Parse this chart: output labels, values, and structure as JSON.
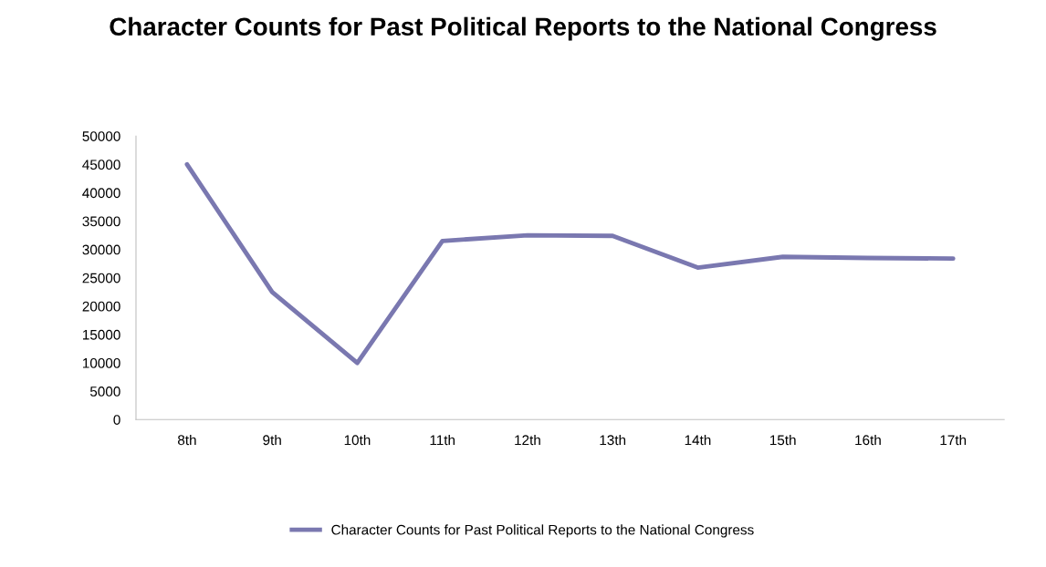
{
  "chart_data": {
    "type": "line",
    "title": "Character Counts for Past Political Reports to the National Congress",
    "categories": [
      "8th",
      "9th",
      "10th",
      "11th",
      "12th",
      "13th",
      "14th",
      "15th",
      "16th",
      "17th"
    ],
    "series": [
      {
        "name": "Character Counts for Past Political Reports to the National Congress",
        "color": "#7a78b0",
        "values": [
          45000,
          22500,
          10000,
          31500,
          32500,
          32400,
          26800,
          28700,
          28500,
          28400
        ]
      }
    ],
    "ylim": [
      0,
      50000
    ],
    "yticks": [
      0,
      5000,
      10000,
      15000,
      20000,
      25000,
      30000,
      35000,
      40000,
      45000,
      50000
    ],
    "grid": false,
    "legend": "bottom",
    "marker": "none",
    "line_style": "solid"
  }
}
